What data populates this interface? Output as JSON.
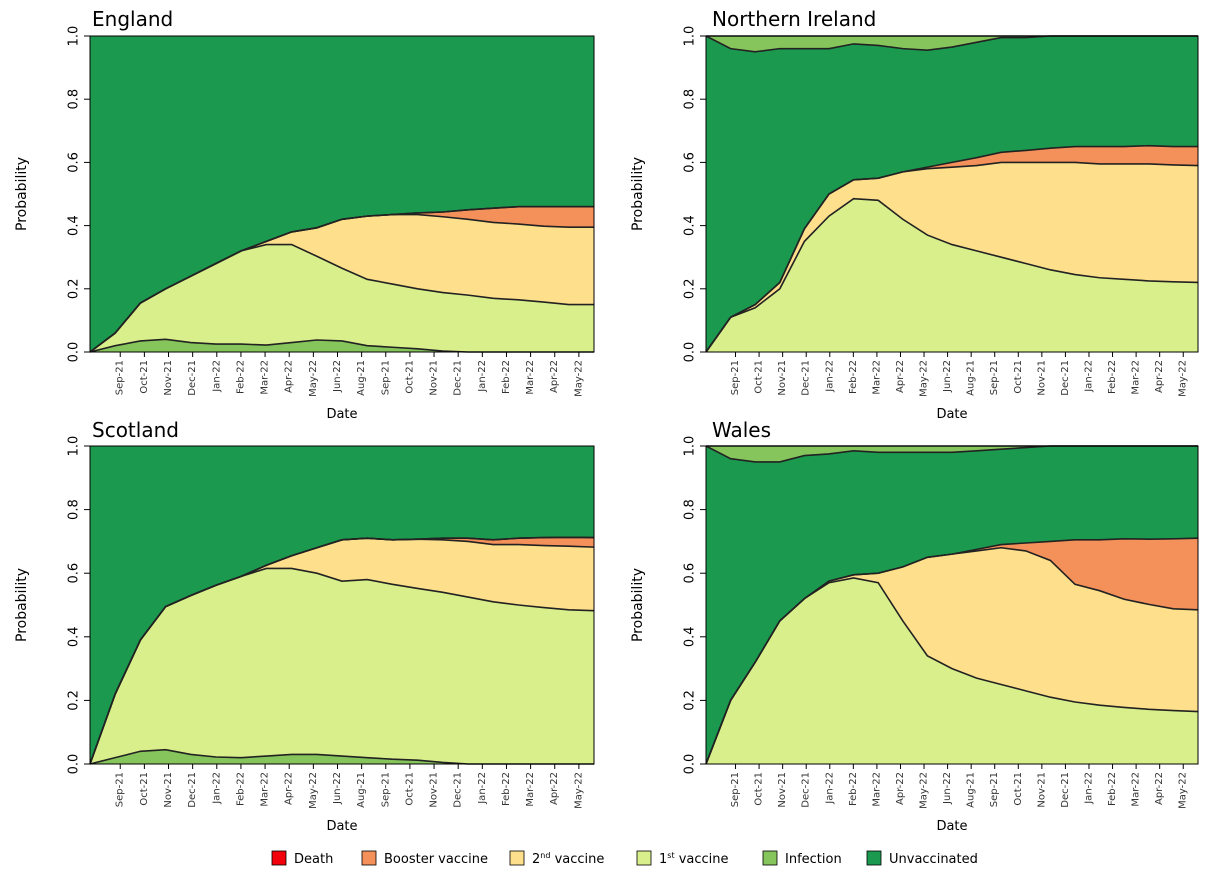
{
  "chart_data": [
    {
      "type": "area",
      "title": "England",
      "xlabel": "Date",
      "ylabel": "Probability",
      "ylim": [
        0,
        1
      ],
      "yticks": [
        "0.0",
        "0.2",
        "0.4",
        "0.6",
        "0.8",
        "1.0"
      ],
      "x_tick_labels": [
        "Sep-21",
        "Oct-21",
        "Nov-21",
        "Dec-21",
        "Jan-22",
        "Feb-22",
        "Mar-22",
        "Apr-22",
        "May-22",
        "Jun-22",
        "Aug-21",
        "Sep-21",
        "Oct-21",
        "Nov-21",
        "Dec-21",
        "Jan-22",
        "Feb-22",
        "Mar-22",
        "Apr-22",
        "May-22"
      ],
      "x": [
        0,
        1,
        2,
        3,
        4,
        5,
        6,
        7,
        8,
        9,
        10,
        11,
        12,
        13,
        14,
        15,
        16,
        17,
        18,
        19,
        20
      ],
      "series": [
        {
          "name": "Infection",
          "values": [
            0,
            0.02,
            0.035,
            0.04,
            0.03,
            0.025,
            0.025,
            0.022,
            0.03,
            0.038,
            0.035,
            0.02,
            0.015,
            0.01,
            0.003,
            0,
            0,
            0,
            0,
            0,
            0
          ]
        },
        {
          "name": "1st vaccine",
          "values": [
            0,
            0.04,
            0.12,
            0.16,
            0.21,
            0.255,
            0.295,
            0.318,
            0.31,
            0.265,
            0.23,
            0.21,
            0.2,
            0.19,
            0.185,
            0.18,
            0.17,
            0.165,
            0.158,
            0.15,
            0.15
          ]
        },
        {
          "name": "2nd vaccine",
          "values": [
            0,
            0,
            0,
            0,
            0,
            0,
            0,
            0.01,
            0.04,
            0.09,
            0.155,
            0.2,
            0.22,
            0.235,
            0.24,
            0.24,
            0.24,
            0.24,
            0.24,
            0.245,
            0.245
          ]
        },
        {
          "name": "Booster vaccine",
          "values": [
            0,
            0,
            0,
            0,
            0,
            0,
            0,
            0,
            0,
            0,
            0,
            0,
            0,
            0.005,
            0.015,
            0.03,
            0.045,
            0.055,
            0.062,
            0.065,
            0.065
          ]
        },
        {
          "name": "Death",
          "values": [
            0,
            0,
            0,
            0,
            0,
            0,
            0,
            0,
            0,
            0,
            0,
            0,
            0,
            0,
            0,
            0,
            0,
            0,
            0,
            0,
            0
          ]
        }
      ]
    },
    {
      "type": "area",
      "title": "Northern Ireland",
      "xlabel": "Date",
      "ylabel": "Probability",
      "ylim": [
        0,
        1
      ],
      "yticks": [
        "0.0",
        "0.2",
        "0.4",
        "0.6",
        "0.8",
        "1.0"
      ],
      "x_tick_labels": [
        "Sep-21",
        "Oct-21",
        "Nov-21",
        "Dec-21",
        "Jan-22",
        "Feb-22",
        "Mar-22",
        "Apr-22",
        "May-22",
        "Jun-22",
        "Aug-21",
        "Sep-21",
        "Oct-21",
        "Nov-21",
        "Dec-21",
        "Jan-22",
        "Feb-22",
        "Mar-22",
        "Apr-22",
        "May-22"
      ],
      "x": [
        0,
        1,
        2,
        3,
        4,
        5,
        6,
        7,
        8,
        9,
        10,
        11,
        12,
        13,
        14,
        15,
        16,
        17,
        18,
        19,
        20
      ],
      "series": [
        {
          "name": "1st vaccine",
          "values": [
            0,
            0.11,
            0.14,
            0.2,
            0.35,
            0.43,
            0.485,
            0.48,
            0.42,
            0.37,
            0.34,
            0.32,
            0.3,
            0.28,
            0.26,
            0.245,
            0.235,
            0.23,
            0.225,
            0.222,
            0.22
          ]
        },
        {
          "name": "2nd vaccine",
          "values": [
            0,
            0,
            0.01,
            0.02,
            0.04,
            0.07,
            0.06,
            0.07,
            0.15,
            0.21,
            0.245,
            0.27,
            0.3,
            0.32,
            0.34,
            0.355,
            0.36,
            0.365,
            0.37,
            0.37,
            0.37
          ]
        },
        {
          "name": "Booster vaccine",
          "values": [
            0,
            0,
            0,
            0,
            0,
            0,
            0,
            0,
            0,
            0.005,
            0.015,
            0.025,
            0.032,
            0.038,
            0.045,
            0.05,
            0.055,
            0.055,
            0.058,
            0.058,
            0.06
          ]
        },
        {
          "name": "Unvaccinated",
          "values": [
            1,
            0.85,
            0.8,
            0.74,
            0.57,
            0.46,
            0.43,
            0.42,
            0.39,
            0.37,
            0.365,
            0.365,
            0.363,
            0.357,
            0.355,
            0.35,
            0.35,
            0.35,
            0.347,
            0.35,
            0.35
          ]
        },
        {
          "name": "Infection",
          "values": [
            0,
            0.04,
            0.05,
            0.04,
            0.04,
            0.04,
            0.025,
            0.03,
            0.04,
            0.045,
            0.035,
            0.02,
            0.005,
            0.005,
            0,
            0,
            0,
            0,
            0,
            0,
            0
          ]
        }
      ]
    },
    {
      "type": "area",
      "title": "Scotland",
      "xlabel": "Date",
      "ylabel": "Probability",
      "ylim": [
        0,
        1
      ],
      "yticks": [
        "0.0",
        "0.2",
        "0.4",
        "0.6",
        "0.8",
        "1.0"
      ],
      "x_tick_labels": [
        "Sep-21",
        "Oct-21",
        "Nov-21",
        "Dec-21",
        "Jan-22",
        "Feb-22",
        "Mar-22",
        "Apr-22",
        "May-22",
        "Jun-22",
        "Aug-21",
        "Sep-21",
        "Oct-21",
        "Nov-21",
        "Dec-21",
        "Jan-22",
        "Feb-22",
        "Mar-22",
        "Apr-22",
        "May-22"
      ],
      "x": [
        0,
        1,
        2,
        3,
        4,
        5,
        6,
        7,
        8,
        9,
        10,
        11,
        12,
        13,
        14,
        15,
        16,
        17,
        18,
        19,
        20
      ],
      "series": [
        {
          "name": "Infection",
          "values": [
            0,
            0.02,
            0.04,
            0.045,
            0.03,
            0.022,
            0.02,
            0.025,
            0.03,
            0.03,
            0.025,
            0.02,
            0.015,
            0.012,
            0.005,
            0,
            0,
            0,
            0,
            0,
            0
          ]
        },
        {
          "name": "1st vaccine",
          "values": [
            0,
            0.2,
            0.35,
            0.45,
            0.5,
            0.54,
            0.57,
            0.59,
            0.585,
            0.57,
            0.55,
            0.56,
            0.55,
            0.54,
            0.535,
            0.525,
            0.51,
            0.5,
            0.492,
            0.485,
            0.482
          ]
        },
        {
          "name": "2nd vaccine",
          "values": [
            0,
            0,
            0,
            0,
            0,
            0,
            0,
            0.01,
            0.04,
            0.08,
            0.13,
            0.13,
            0.14,
            0.155,
            0.165,
            0.175,
            0.18,
            0.19,
            0.195,
            0.2,
            0.2
          ]
        },
        {
          "name": "Booster vaccine",
          "values": [
            0,
            0,
            0,
            0,
            0,
            0,
            0,
            0,
            0,
            0,
            0,
            0,
            0,
            0,
            0.005,
            0.01,
            0.015,
            0.02,
            0.025,
            0.028,
            0.03
          ]
        },
        {
          "name": "Death",
          "values": [
            0,
            0,
            0,
            0,
            0,
            0,
            0,
            0,
            0,
            0,
            0,
            0,
            0,
            0,
            0,
            0,
            0,
            0,
            0,
            0,
            0
          ]
        }
      ]
    },
    {
      "type": "area",
      "title": "Wales",
      "xlabel": "Date",
      "ylabel": "Probability",
      "ylim": [
        0,
        1
      ],
      "yticks": [
        "0.0",
        "0.2",
        "0.4",
        "0.6",
        "0.8",
        "1.0"
      ],
      "x_tick_labels": [
        "Sep-21",
        "Oct-21",
        "Nov-21",
        "Dec-21",
        "Jan-22",
        "Feb-22",
        "Mar-22",
        "Apr-22",
        "May-22",
        "Jun-22",
        "Aug-21",
        "Sep-21",
        "Oct-21",
        "Nov-21",
        "Dec-21",
        "Jan-22",
        "Feb-22",
        "Mar-22",
        "Apr-22",
        "May-22"
      ],
      "x": [
        0,
        1,
        2,
        3,
        4,
        5,
        6,
        7,
        8,
        9,
        10,
        11,
        12,
        13,
        14,
        15,
        16,
        17,
        18,
        19,
        20
      ],
      "series": [
        {
          "name": "1st vaccine",
          "values": [
            0,
            0.2,
            0.32,
            0.45,
            0.52,
            0.57,
            0.585,
            0.57,
            0.45,
            0.34,
            0.3,
            0.27,
            0.25,
            0.23,
            0.21,
            0.195,
            0.185,
            0.178,
            0.172,
            0.168,
            0.165
          ]
        },
        {
          "name": "2nd vaccine",
          "values": [
            0,
            0,
            0,
            0,
            0,
            0.005,
            0.01,
            0.03,
            0.17,
            0.31,
            0.36,
            0.4,
            0.43,
            0.44,
            0.43,
            0.37,
            0.36,
            0.34,
            0.33,
            0.32,
            0.32
          ]
        },
        {
          "name": "Booster vaccine",
          "values": [
            0,
            0,
            0,
            0,
            0,
            0,
            0,
            0,
            0,
            0,
            0,
            0.005,
            0.01,
            0.025,
            0.06,
            0.14,
            0.16,
            0.19,
            0.205,
            0.22,
            0.225
          ]
        },
        {
          "name": "Unvaccinated",
          "values": [
            1,
            0.76,
            0.63,
            0.5,
            0.45,
            0.4,
            0.39,
            0.38,
            0.36,
            0.33,
            0.32,
            0.31,
            0.3,
            0.3,
            0.3,
            0.295,
            0.295,
            0.292,
            0.293,
            0.292,
            0.29
          ]
        },
        {
          "name": "Infection",
          "values": [
            0,
            0.04,
            0.05,
            0.05,
            0.03,
            0.025,
            0.015,
            0.02,
            0.02,
            0.02,
            0.02,
            0.015,
            0.01,
            0.005,
            0,
            0,
            0,
            0,
            0,
            0,
            0
          ]
        }
      ]
    }
  ],
  "legend": {
    "placement": "bottom",
    "items": [
      {
        "label": "Death",
        "color": "#f2000b"
      },
      {
        "label": "Booster vaccine",
        "color": "#f4905a"
      },
      {
        "label": "2",
        "sup": "nd",
        "suffix": " vaccine",
        "color": "#fddf8c"
      },
      {
        "label": "1",
        "sup": "st",
        "suffix": " vaccine",
        "color": "#d9ef8b"
      },
      {
        "label": "Infection",
        "color": "#86c45c"
      },
      {
        "label": "Unvaccinated",
        "color": "#1b9a4f"
      }
    ]
  },
  "colors": {
    "Death": "#f2000b",
    "Booster vaccine": "#f4905a",
    "2nd vaccine": "#fddf8c",
    "1st vaccine": "#d9ef8b",
    "Infection": "#86c45c",
    "Unvaccinated": "#1b9a4f"
  }
}
